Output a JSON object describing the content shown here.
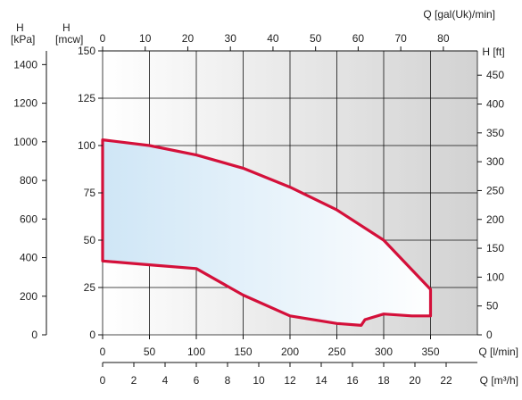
{
  "chart_data": {
    "type": "area",
    "colors": {
      "curve": "#d4103a",
      "fill_left": "#cfe6f6",
      "fill_right": "#ffffff",
      "bg_left": "#ffffff",
      "bg_right": "#d2d2d2",
      "grid": "#111111",
      "axis": "#111111"
    },
    "grid": true,
    "axes": {
      "y_kpa": {
        "title": "H",
        "unit": "[kPa]",
        "range": [
          0,
          1471
        ],
        "ticks": [
          0,
          200,
          400,
          600,
          800,
          1000,
          1200,
          1400
        ]
      },
      "y_mcw": {
        "title": "H",
        "unit": "[mcw]",
        "range": [
          0,
          150
        ],
        "ticks": [
          0,
          25,
          50,
          75,
          100,
          125,
          150
        ]
      },
      "y_ft": {
        "title": "H [ft]",
        "range": [
          0,
          492.1
        ],
        "ticks": [
          0,
          50,
          100,
          150,
          200,
          250,
          300,
          350,
          400,
          450
        ]
      },
      "x_lmin": {
        "title": "Q [l/min]",
        "range": [
          0,
          400
        ],
        "ticks": [
          0,
          50,
          100,
          150,
          200,
          250,
          300,
          350
        ]
      },
      "x_m3h": {
        "title": "Q [m³/h]",
        "range": [
          0,
          24
        ],
        "ticks": [
          0,
          2,
          4,
          6,
          8,
          10,
          12,
          14,
          16,
          18,
          20,
          22
        ]
      },
      "x_galuk": {
        "title": "Q [gal(Uk)/min]",
        "range": [
          0,
          87.99
        ],
        "ticks": [
          0,
          10,
          20,
          30,
          40,
          50,
          60,
          70,
          80
        ]
      }
    },
    "series": [
      {
        "x": [
          0,
          50,
          100,
          150,
          200,
          250,
          300,
          350,
          350,
          330,
          300,
          280,
          276,
          250,
          200,
          150,
          100,
          50,
          0,
          0
        ],
        "y": [
          103,
          100,
          95,
          88,
          78,
          66,
          50,
          24,
          10,
          10,
          11,
          8,
          5,
          6,
          10,
          21,
          35,
          37,
          39,
          103
        ]
      }
    ]
  }
}
